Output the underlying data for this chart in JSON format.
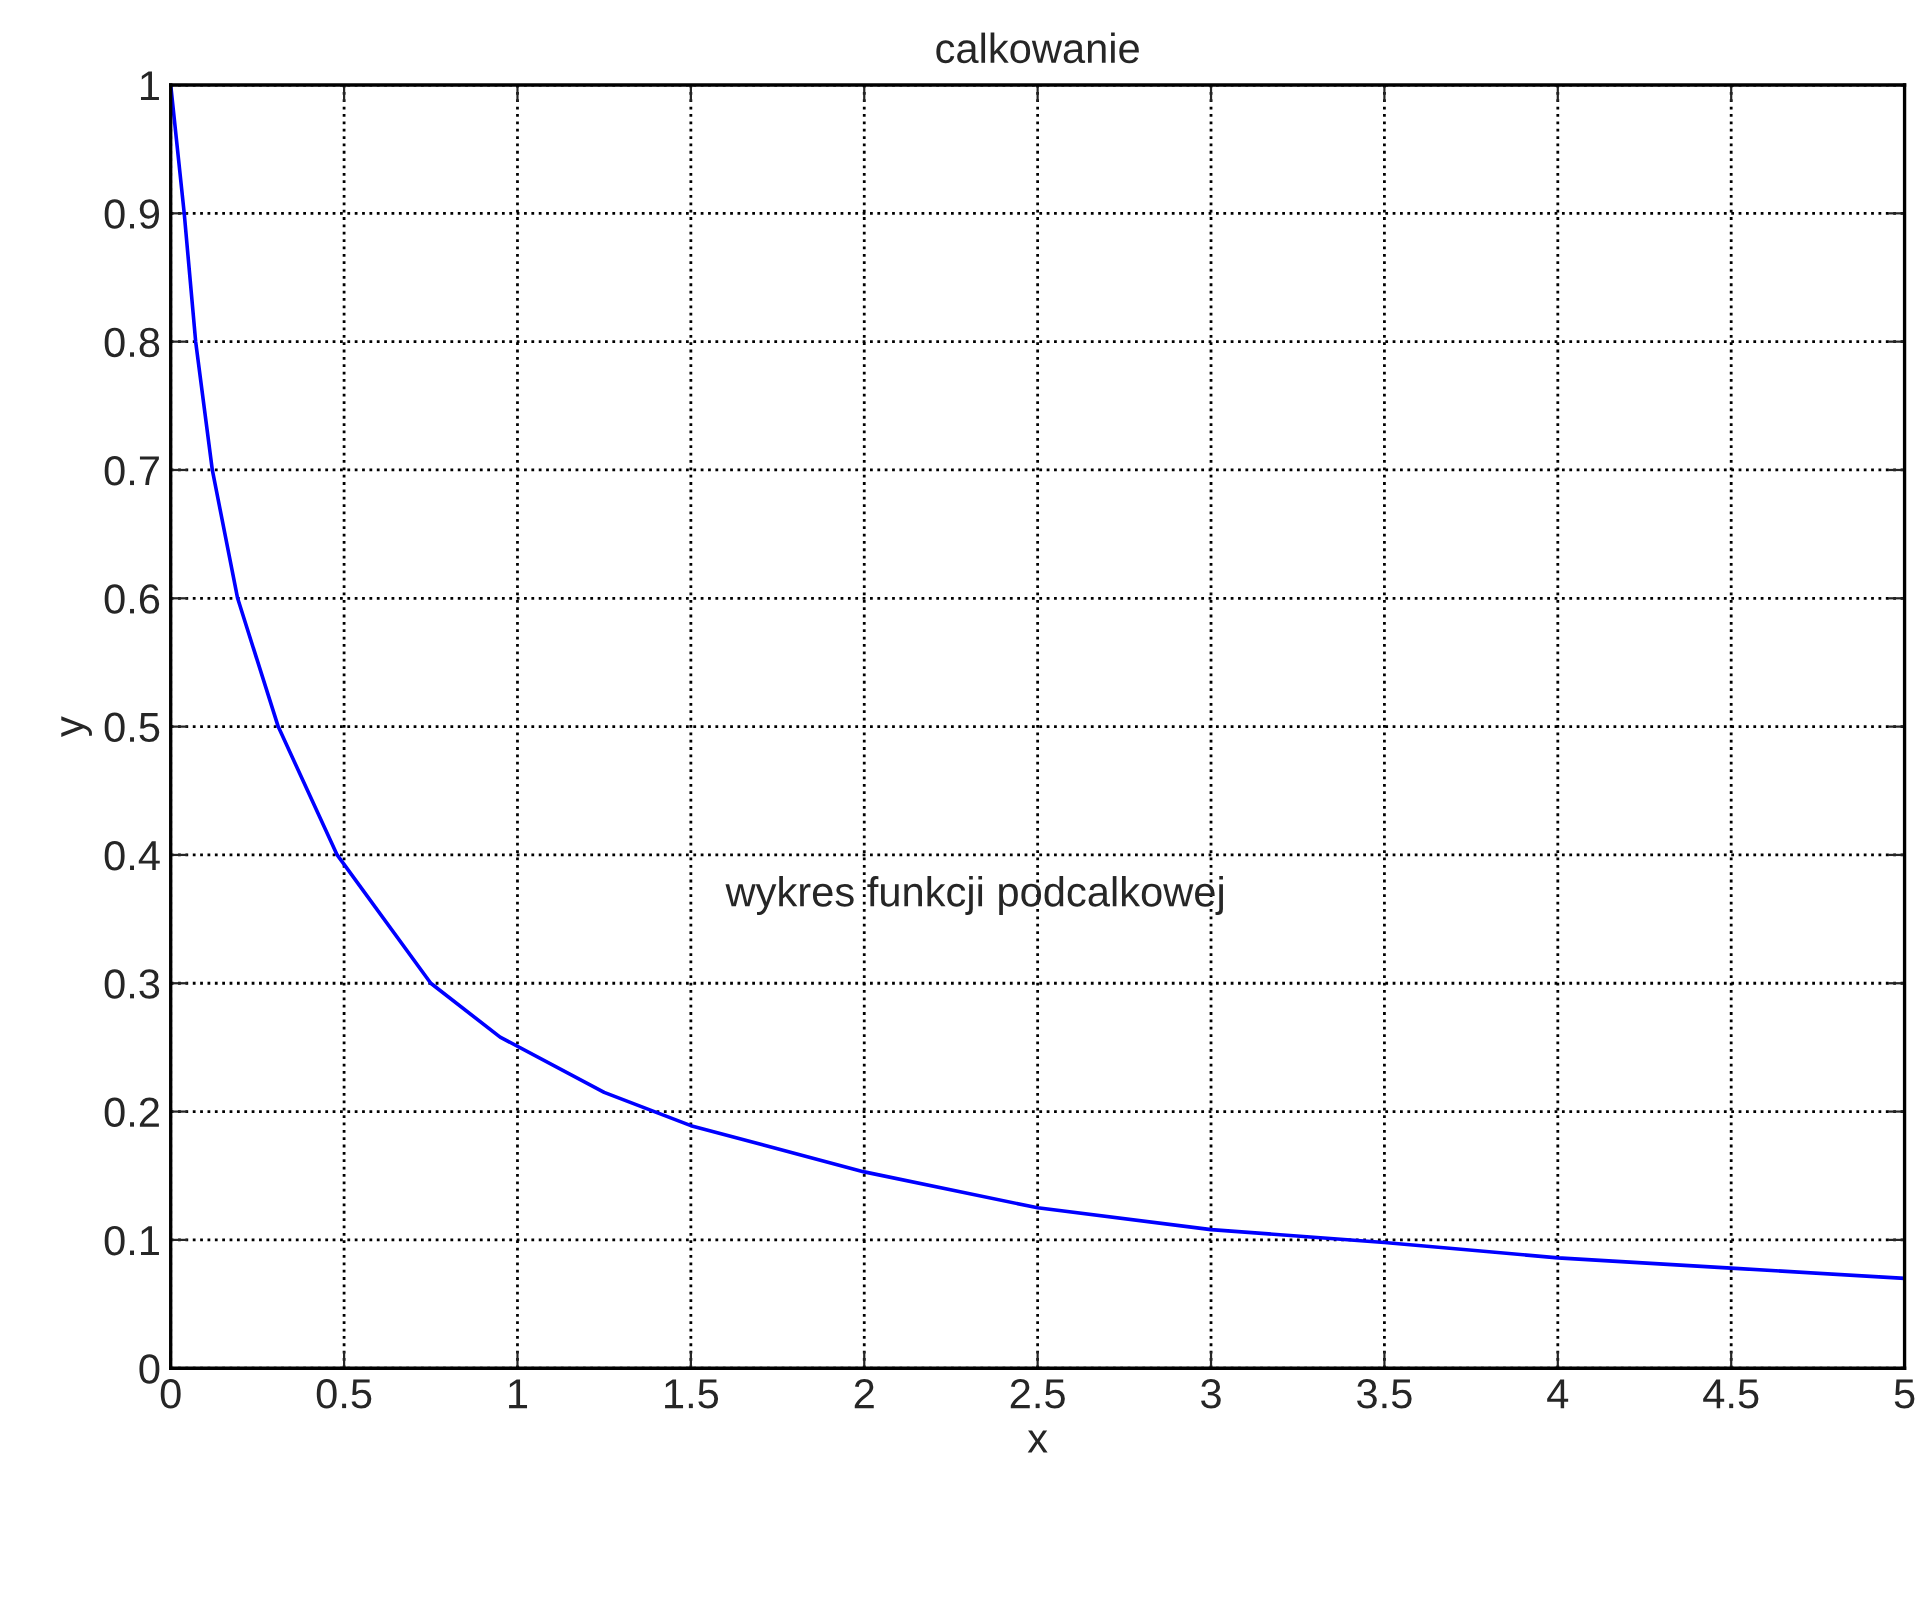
{
  "chart_data": {
    "type": "line",
    "title": "calkowanie",
    "xlabel": "x",
    "ylabel": "y",
    "x": [
      0,
      0.039,
      0.072,
      0.12,
      0.193,
      0.31,
      0.48,
      0.75,
      0.95,
      1.25,
      1.5,
      2,
      2.5,
      3,
      3.5,
      4,
      4.5,
      5
    ],
    "series": [
      {
        "color": "#0000ff",
        "values": [
          1,
          0.9,
          0.8,
          0.7,
          0.6,
          0.5,
          0.4,
          0.3,
          0.258,
          0.215,
          0.189,
          0.153,
          0.125,
          0.108,
          0.098,
          0.086,
          0.078,
          0.07
        ]
      }
    ],
    "annotations": [
      "wykres funkcji podcalkowej"
    ],
    "xlim": [
      0,
      5
    ],
    "ylim": [
      0,
      1
    ],
    "xticks": [
      0,
      0.5,
      1,
      1.5,
      2,
      2.5,
      3,
      3.5,
      4,
      4.5,
      5
    ],
    "yticks": [
      0,
      0.1,
      0.2,
      0.3,
      0.4,
      0.5,
      0.6,
      0.7,
      0.8,
      0.9,
      1
    ],
    "grid": true,
    "marker": "none",
    "line_style": "solid"
  }
}
